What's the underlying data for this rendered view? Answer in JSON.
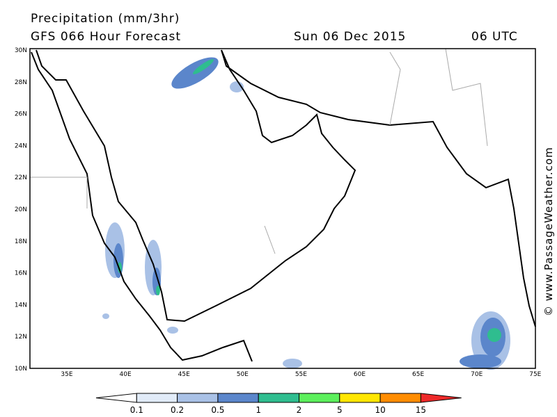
{
  "header": {
    "title": "Precipitation (mm/3hr)",
    "model": "GFS 066 Hour Forecast",
    "date": "Sun 06 Dec 2015",
    "time": "06 UTC"
  },
  "credit": "© www.PassageWeather.com",
  "map": {
    "lat_labels": [
      "30N",
      "28N",
      "26N",
      "24N",
      "22N",
      "20N",
      "18N",
      "16N",
      "14N",
      "12N",
      "10N"
    ],
    "lon_labels": [
      "35E",
      "40E",
      "45E",
      "50E",
      "55E",
      "60E",
      "65E",
      "70E",
      "75E"
    ]
  },
  "legend": {
    "levels": [
      0.1,
      0.2,
      0.5,
      1,
      2,
      5,
      10,
      15
    ],
    "colors": [
      "#ffffff",
      "#e1ebf8",
      "#a9c1e6",
      "#5b86cb",
      "#2fbd8f",
      "#5cef5c",
      "#ffe600",
      "#ff8c00",
      "#ee2a2a"
    ]
  }
}
